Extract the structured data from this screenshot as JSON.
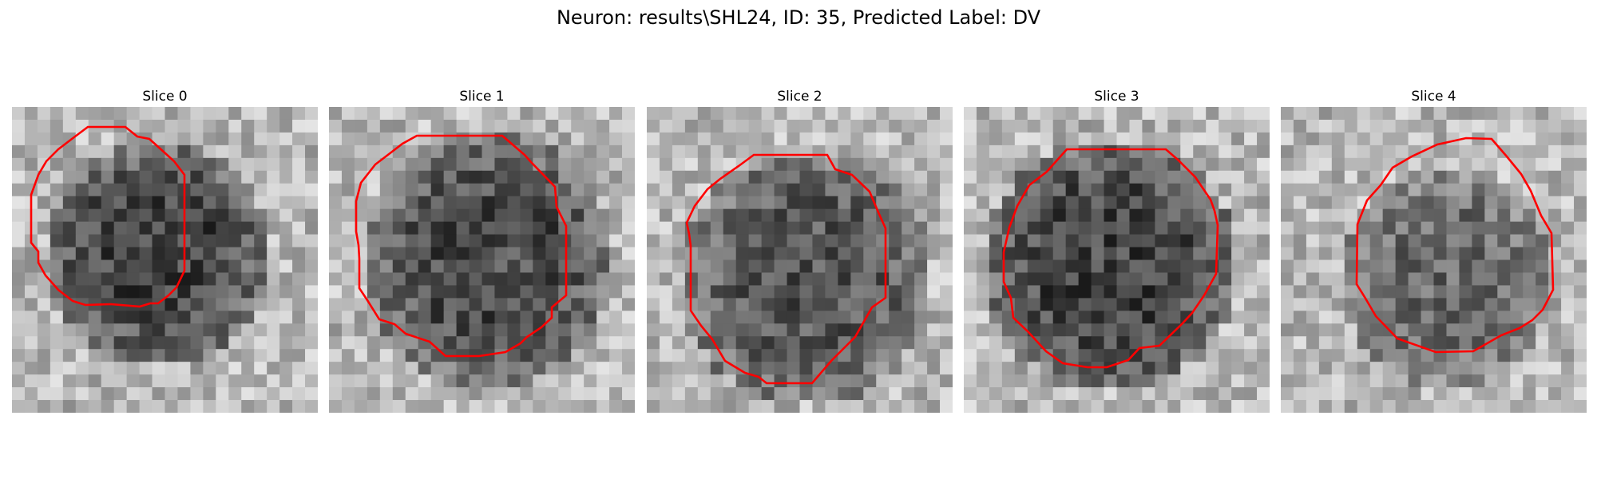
{
  "figure": {
    "suptitle": "Neuron: results\\SHL24, ID: 35, Predicted Label: DV",
    "contour_color": "#ff0000",
    "colormap": "gray"
  },
  "slices": [
    {
      "title": "Slice 0"
    },
    {
      "title": "Slice 1"
    },
    {
      "title": "Slice 2"
    },
    {
      "title": "Slice 3"
    },
    {
      "title": "Slice 4"
    }
  ]
}
